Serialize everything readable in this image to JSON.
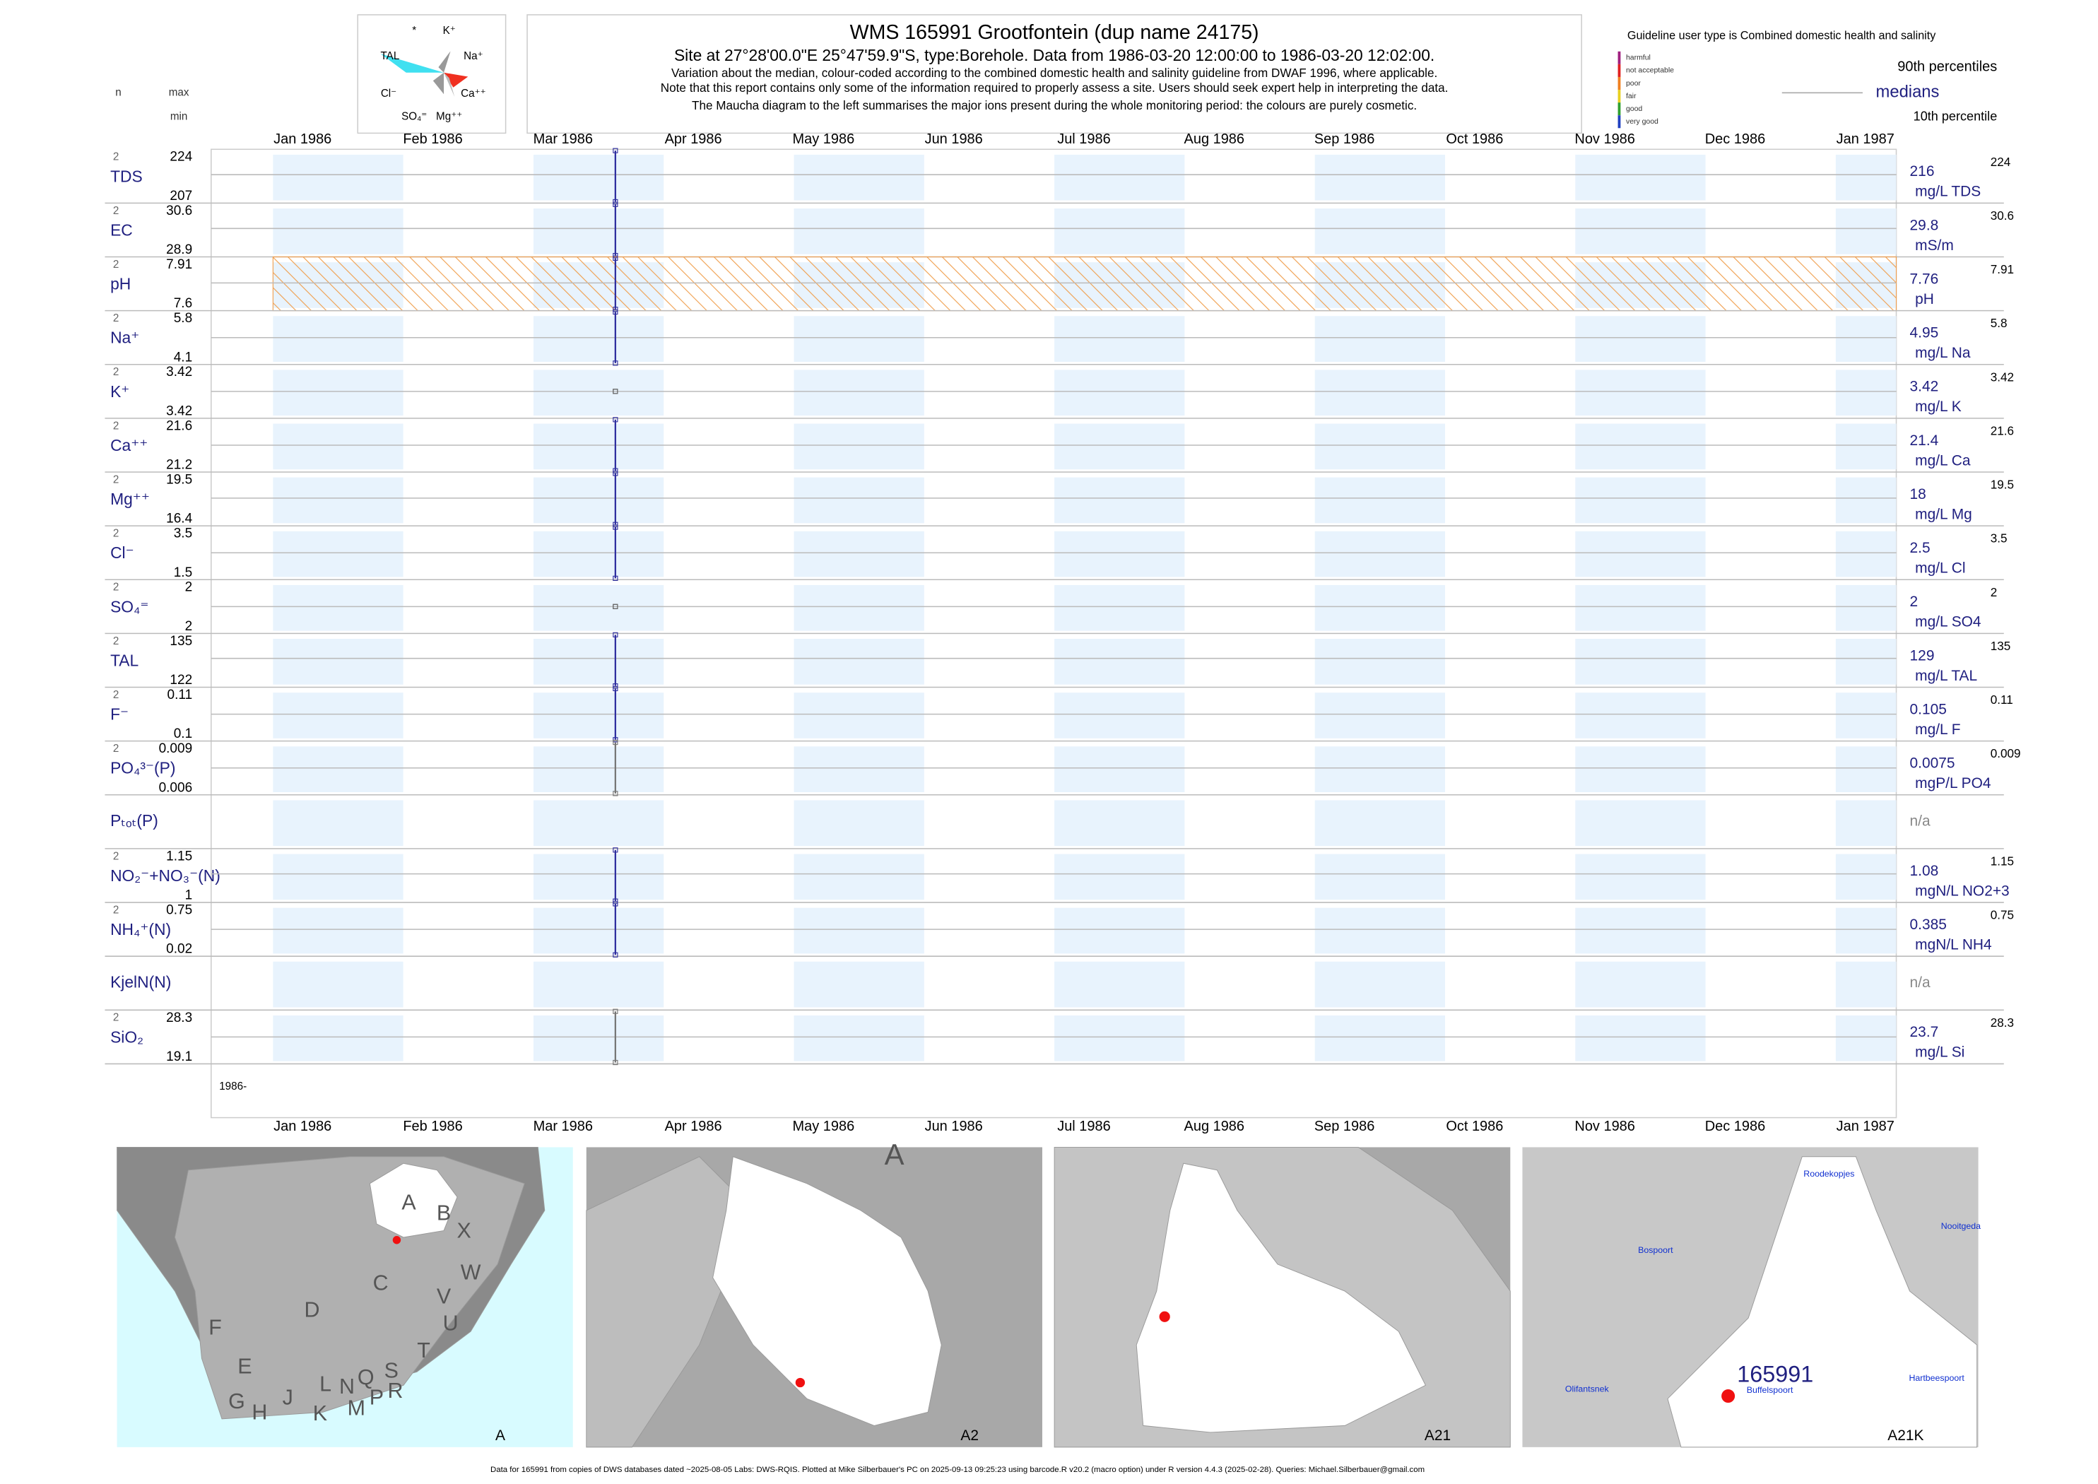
{
  "header": {
    "title": "WMS 165991  Grootfontein (dup name 24175)",
    "subtitle": [
      "Site at 27°28'00.0\"E 25°47'59.9\"S, type:Borehole.  Data from ",
      "1986-03-20 12:00:00",
      " to ",
      "1986-03-20 12:02:00",
      "."
    ],
    "notes": [
      "Variation about the median,  colour-coded according to the combined domestic health and salinity guideline from DWAF 1996, where applicable.",
      "Note that this report contains only some of the information required to properly assess a site. Users should seek expert help in interpreting the data.",
      "The Maucha diagram to the left summarises the major ions present during the whole monitoring period: the colours are purely cosmetic."
    ],
    "column_labels": {
      "n": "n",
      "max": "max",
      "min": "min"
    },
    "maucha_labels": [
      "*",
      "K⁺",
      "TAL",
      "Na⁺",
      "Cl⁻",
      "Ca⁺⁺",
      "SO₄⁼",
      "Mg⁺⁺"
    ]
  },
  "legend": {
    "guideline": "Guideline user type is Combined domestic health and salinity",
    "levels": [
      {
        "label": "harmful",
        "color": "#a0207f"
      },
      {
        "label": "not acceptable",
        "color": "#e02020"
      },
      {
        "label": "poor",
        "color": "#f08020"
      },
      {
        "label": "fair",
        "color": "#e8d020"
      },
      {
        "label": "good",
        "color": "#30a030"
      },
      {
        "label": "very good",
        "color": "#2040c0"
      }
    ],
    "upper": "90th percentiles",
    "middle": "medians",
    "lower": "10th percentile"
  },
  "chart_data": {
    "type": "range-strip",
    "categories": [
      "Jan 1986",
      "Feb 1986",
      "Mar 1986",
      "Apr 1986",
      "May 1986",
      "Jun 1986",
      "Jul 1986",
      "Aug 1986",
      "Sep 1986",
      "Oct 1986",
      "Nov 1986",
      "Dec 1986",
      "Jan 1987"
    ],
    "year_label": "1986-",
    "rows": [
      {
        "name": "TDS",
        "n": 2,
        "max": 224,
        "min": 207,
        "median": 216,
        "unit": "mg/L TDS",
        "color": "#3030a0"
      },
      {
        "name": "EC",
        "n": 2,
        "max": 30.6,
        "min": 28.9,
        "median": 29.8,
        "unit": "mS/m",
        "color": "#3030a0"
      },
      {
        "name": "pH",
        "n": 2,
        "max": 7.91,
        "min": 7.6,
        "median": 7.76,
        "unit": "pH",
        "color": "#3030a0",
        "hatched": true
      },
      {
        "name": "Na⁺",
        "n": 2,
        "max": 5.8,
        "min": 4.1,
        "median": 4.95,
        "unit": "mg/L Na",
        "color": "#3030a0"
      },
      {
        "name": "K⁺",
        "n": 2,
        "max": 3.42,
        "min": 3.42,
        "median": 3.42,
        "unit": "mg/L K",
        "color": "#666666"
      },
      {
        "name": "Ca⁺⁺",
        "n": 2,
        "max": 21.6,
        "min": 21.2,
        "median": 21.4,
        "unit": "mg/L Ca",
        "color": "#3030a0"
      },
      {
        "name": "Mg⁺⁺",
        "n": 2,
        "max": 19.5,
        "min": 16.4,
        "median": 18,
        "unit": "mg/L Mg",
        "color": "#3030a0"
      },
      {
        "name": "Cl⁻",
        "n": 2,
        "max": 3.5,
        "min": 1.5,
        "median": 2.5,
        "unit": "mg/L Cl",
        "color": "#3030a0"
      },
      {
        "name": "SO₄⁼",
        "n": 2,
        "max": 2,
        "min": 2,
        "median": 2,
        "unit": "mg/L SO4",
        "color": "#666666"
      },
      {
        "name": "TAL",
        "n": 2,
        "max": 135,
        "min": 122,
        "median": 129,
        "unit": "mg/L TAL",
        "color": "#3030a0"
      },
      {
        "name": "F⁻",
        "n": 2,
        "max": 0.11,
        "min": 0.1,
        "median": 0.105,
        "unit": "mg/L F",
        "color": "#3030a0"
      },
      {
        "name": "PO₄³⁻(P)",
        "n": 2,
        "max": 0.009,
        "min": 0.006,
        "median": 0.0075,
        "unit": "mgP/L PO4",
        "color": "#777777"
      },
      {
        "name": "Pₜₒₜ(P)",
        "median": "n/a"
      },
      {
        "name": "NO₂⁻+NO₃⁻(N)",
        "n": 2,
        "max": 1.15,
        "min": 1,
        "median": 1.08,
        "unit": "mgN/L NO2+3",
        "color": "#3030a0"
      },
      {
        "name": "NH₄⁺(N)",
        "n": 2,
        "max": 0.75,
        "min": 0.02,
        "median": 0.385,
        "unit": "mgN/L NH4",
        "color": "#3030a0"
      },
      {
        "name": "KjelN(N)",
        "median": "n/a"
      },
      {
        "name": "SiO₂",
        "n": 2,
        "max": 28.3,
        "min": 19.1,
        "median": 23.7,
        "unit": "mg/L Si",
        "color": "#777777"
      }
    ]
  },
  "maps": [
    {
      "label": "A",
      "letters": [
        "A",
        "B",
        "X",
        "W",
        "C",
        "D",
        "V",
        "U",
        "F",
        "E",
        "T",
        "J",
        "L",
        "N",
        "Q",
        "S",
        "G",
        "H",
        "K",
        "M",
        "P",
        "R"
      ]
    },
    {
      "label": "A2",
      "letters": [
        "A"
      ]
    },
    {
      "label": "A21",
      "letters": []
    },
    {
      "label": "A21K",
      "site": "165991",
      "places": [
        "Roodekopjes",
        "Nooitgeda",
        "Bospoort",
        "Olifantsnek",
        "Hartbeespoort",
        "Buffelspoort"
      ]
    }
  ],
  "footer": "Data for 165991 from copies of DWS databases dated ~2025-08-05 Labs: DWS-RQIS. Plotted at Mike Silberbauer's PC on 2025-09-13 09:25:23 using barcode.R v20.2 (macro option) under R version 4.4.3 (2025-02-28). Queries: Michael.Silberbauer@gmail.com"
}
